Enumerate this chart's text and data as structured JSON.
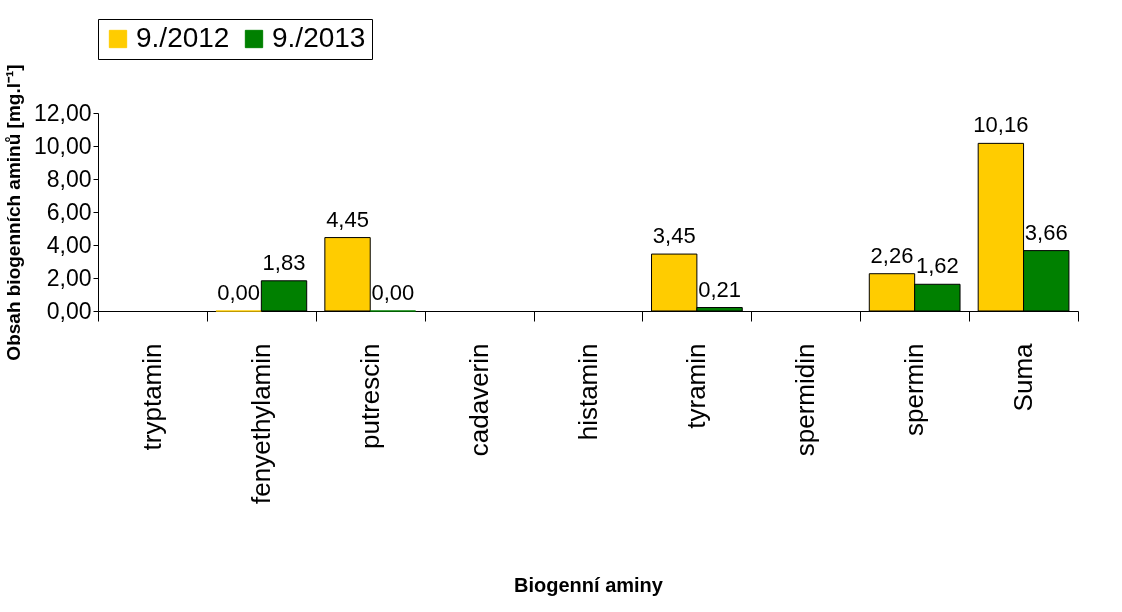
{
  "chart_data": {
    "type": "bar",
    "xlabel": "Biogenní aminy",
    "ylabel": "Obsah biogenních aminů [mg.l⁻¹]",
    "categories": [
      "tryptamin",
      "fenyethylamin",
      "putrescin",
      "cadaverin",
      "histamin",
      "tyramin",
      "spermidin",
      "spermin",
      "Suma"
    ],
    "series": [
      {
        "name": "9./2012",
        "color": "#ffcc00",
        "values": [
          null,
          0,
          4.45,
          null,
          null,
          3.45,
          null,
          2.26,
          10.16
        ],
        "value_labels": [
          null,
          "0,00",
          "4,45",
          null,
          null,
          "3,45",
          null,
          "2,26",
          "10,16"
        ]
      },
      {
        "name": "9./2013",
        "color": "#008000",
        "values": [
          null,
          1.83,
          0,
          null,
          null,
          0.21,
          null,
          1.62,
          3.66
        ],
        "value_labels": [
          null,
          "1,83",
          "0,00",
          null,
          null,
          "0,21",
          null,
          "1,62",
          "3,66"
        ]
      }
    ],
    "ylim": [
      0,
      12
    ],
    "yticks": [
      {
        "value": 0,
        "label": "0,00"
      },
      {
        "value": 2,
        "label": "2,00"
      },
      {
        "value": 4,
        "label": "4,00"
      },
      {
        "value": 6,
        "label": "6,00"
      },
      {
        "value": 8,
        "label": "8,00"
      },
      {
        "value": 10,
        "label": "10,00"
      },
      {
        "value": 12,
        "label": "12,00"
      }
    ],
    "grid": false,
    "legend": "top"
  }
}
